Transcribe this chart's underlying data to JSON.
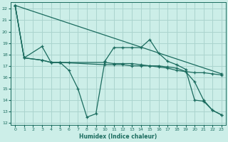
{
  "xlabel": "Humidex (Indice chaleur)",
  "bg_color": "#cceee8",
  "grid_color": "#aad4ce",
  "line_color": "#1a6b5e",
  "xlim": [
    -0.5,
    23.5
  ],
  "ylim": [
    11.8,
    22.6
  ],
  "yticks": [
    12,
    13,
    14,
    15,
    16,
    17,
    18,
    19,
    20,
    21,
    22
  ],
  "xticks": [
    0,
    1,
    2,
    3,
    4,
    5,
    6,
    7,
    8,
    9,
    10,
    11,
    12,
    13,
    14,
    15,
    16,
    17,
    18,
    19,
    20,
    21,
    22,
    23
  ],
  "series": [
    {
      "x": [
        0,
        1,
        3,
        4,
        5,
        6,
        7,
        8,
        9,
        10,
        11,
        12,
        13,
        14,
        15,
        16,
        17,
        18,
        19,
        20,
        21,
        22,
        23
      ],
      "y": [
        22.3,
        17.7,
        18.7,
        17.3,
        17.3,
        16.6,
        15.0,
        12.5,
        12.8,
        17.4,
        18.6,
        18.6,
        18.6,
        18.6,
        19.3,
        18.1,
        17.4,
        17.1,
        16.7,
        14.0,
        13.9,
        13.1,
        12.7
      ]
    },
    {
      "x": [
        0,
        23
      ],
      "y": [
        22.3,
        16.3
      ]
    },
    {
      "comment": "line: 0->22.3, 1->17.7, flat around 17.3-17.5 thru ~x=5, then slowly declining",
      "x": [
        0,
        1,
        3,
        4,
        5,
        10,
        11,
        12,
        13,
        14,
        15,
        16,
        17,
        18,
        19,
        20,
        21,
        22,
        23
      ],
      "y": [
        22.3,
        17.7,
        17.5,
        17.3,
        17.3,
        17.1,
        17.1,
        17.1,
        17.0,
        17.0,
        17.0,
        16.9,
        16.8,
        16.6,
        16.5,
        16.4,
        16.4,
        16.3,
        16.2
      ]
    },
    {
      "x": [
        0,
        1,
        3,
        4,
        5,
        6,
        10,
        11,
        12,
        13,
        14,
        15,
        16,
        17,
        18,
        19,
        20,
        21,
        22,
        23
      ],
      "y": [
        22.3,
        17.7,
        17.5,
        17.3,
        17.3,
        17.3,
        17.3,
        17.2,
        17.2,
        17.2,
        17.1,
        17.0,
        17.0,
        16.9,
        16.8,
        16.5,
        15.6,
        14.0,
        13.1,
        12.7
      ]
    }
  ]
}
